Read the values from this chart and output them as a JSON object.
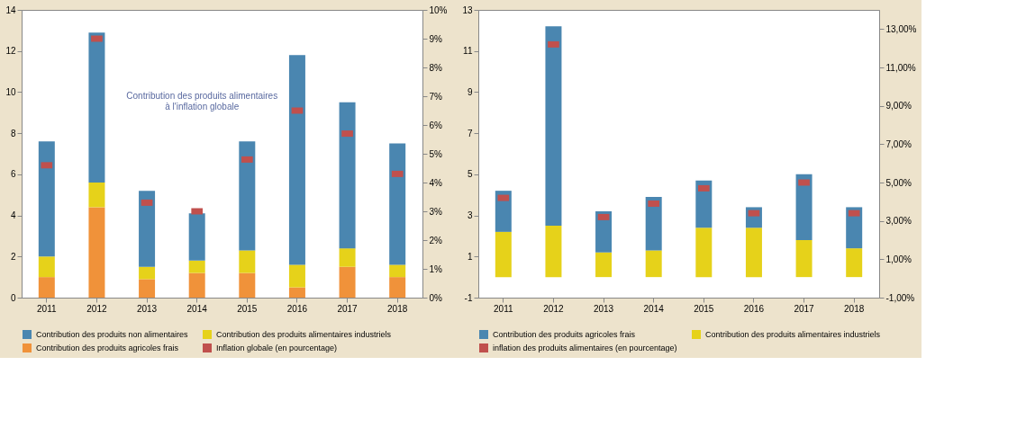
{
  "chart_data": [
    {
      "type": "bar",
      "stacked": true,
      "categories": [
        "2011",
        "2012",
        "2013",
        "2014",
        "2015",
        "2016",
        "2017",
        "2018"
      ],
      "series": [
        {
          "name": "Contribution des produits agricoles frais",
          "color": "#f0923a",
          "values": [
            1.0,
            4.4,
            0.9,
            1.2,
            1.2,
            0.5,
            1.5,
            1.0
          ]
        },
        {
          "name": "Contribution des produits alimentaires industriels",
          "color": "#e6d21a",
          "values": [
            1.0,
            1.2,
            0.6,
            0.6,
            1.1,
            1.1,
            0.9,
            0.6
          ]
        },
        {
          "name": "Contribution des produits non alimentaires",
          "color": "#4a86b0",
          "values": [
            5.6,
            7.3,
            3.7,
            2.3,
            5.3,
            10.2,
            7.1,
            5.9
          ]
        },
        {
          "name": "Inflation globale (en pourcentage)",
          "type": "scatter",
          "axis": "y2",
          "color": "#c0504d",
          "values": [
            4.6,
            9.0,
            3.3,
            3.0,
            4.8,
            6.5,
            5.7,
            4.3
          ]
        }
      ],
      "ylim": [
        0,
        14
      ],
      "yticks": [
        0,
        2,
        4,
        6,
        8,
        10,
        12,
        14
      ],
      "y2lim": [
        0,
        10
      ],
      "y2ticks": [
        {
          "value": 0,
          "label": "0%"
        },
        {
          "value": 1,
          "label": "1%"
        },
        {
          "value": 2,
          "label": "2%"
        },
        {
          "value": 3,
          "label": "3%"
        },
        {
          "value": 4,
          "label": "4%"
        },
        {
          "value": 5,
          "label": "5%"
        },
        {
          "value": 6,
          "label": "6%"
        },
        {
          "value": 7,
          "label": "7%"
        },
        {
          "value": 8,
          "label": "8%"
        },
        {
          "value": 9,
          "label": "9%"
        },
        {
          "value": 10,
          "label": "10%"
        }
      ],
      "annotations": [
        "Contribution des produits alimentaires à l'inflation globale"
      ],
      "legend": "bottom",
      "grid": false
    },
    {
      "type": "bar",
      "stacked": true,
      "categories": [
        "2011",
        "2012",
        "2013",
        "2014",
        "2015",
        "2016",
        "2017",
        "2018"
      ],
      "series": [
        {
          "name": "Contribution des produits alimentaires industriels",
          "color": "#e6d21a",
          "values": [
            2.2,
            2.5,
            1.2,
            1.3,
            2.4,
            2.4,
            1.8,
            1.4
          ]
        },
        {
          "name": "Contribution des produits agricoles frais",
          "color": "#4a86b0",
          "values": [
            2.0,
            9.7,
            2.0,
            2.6,
            2.3,
            1.0,
            3.2,
            2.0
          ]
        },
        {
          "name": "inflation des produits alimentaires (en pourcentage)",
          "type": "scatter",
          "axis": "y2",
          "color": "#c0504d",
          "values": [
            4.2,
            12.2,
            3.2,
            3.9,
            4.7,
            3.4,
            5.0,
            3.4
          ]
        }
      ],
      "ylim": [
        -1,
        13
      ],
      "yticks": [
        -1,
        1,
        3,
        5,
        7,
        9,
        11,
        13
      ],
      "y2lim": [
        -1,
        14
      ],
      "y2ticks": [
        {
          "value": -1,
          "label": "-1,00%"
        },
        {
          "value": 1,
          "label": "1,00%"
        },
        {
          "value": 3,
          "label": "3,00%"
        },
        {
          "value": 5,
          "label": "5,00%"
        },
        {
          "value": 7,
          "label": "7,00%"
        },
        {
          "value": 9,
          "label": "9,00%"
        },
        {
          "value": 11,
          "label": "11,00%"
        },
        {
          "value": 13,
          "label": "13,00%"
        }
      ],
      "legend": "bottom",
      "grid": false
    }
  ]
}
